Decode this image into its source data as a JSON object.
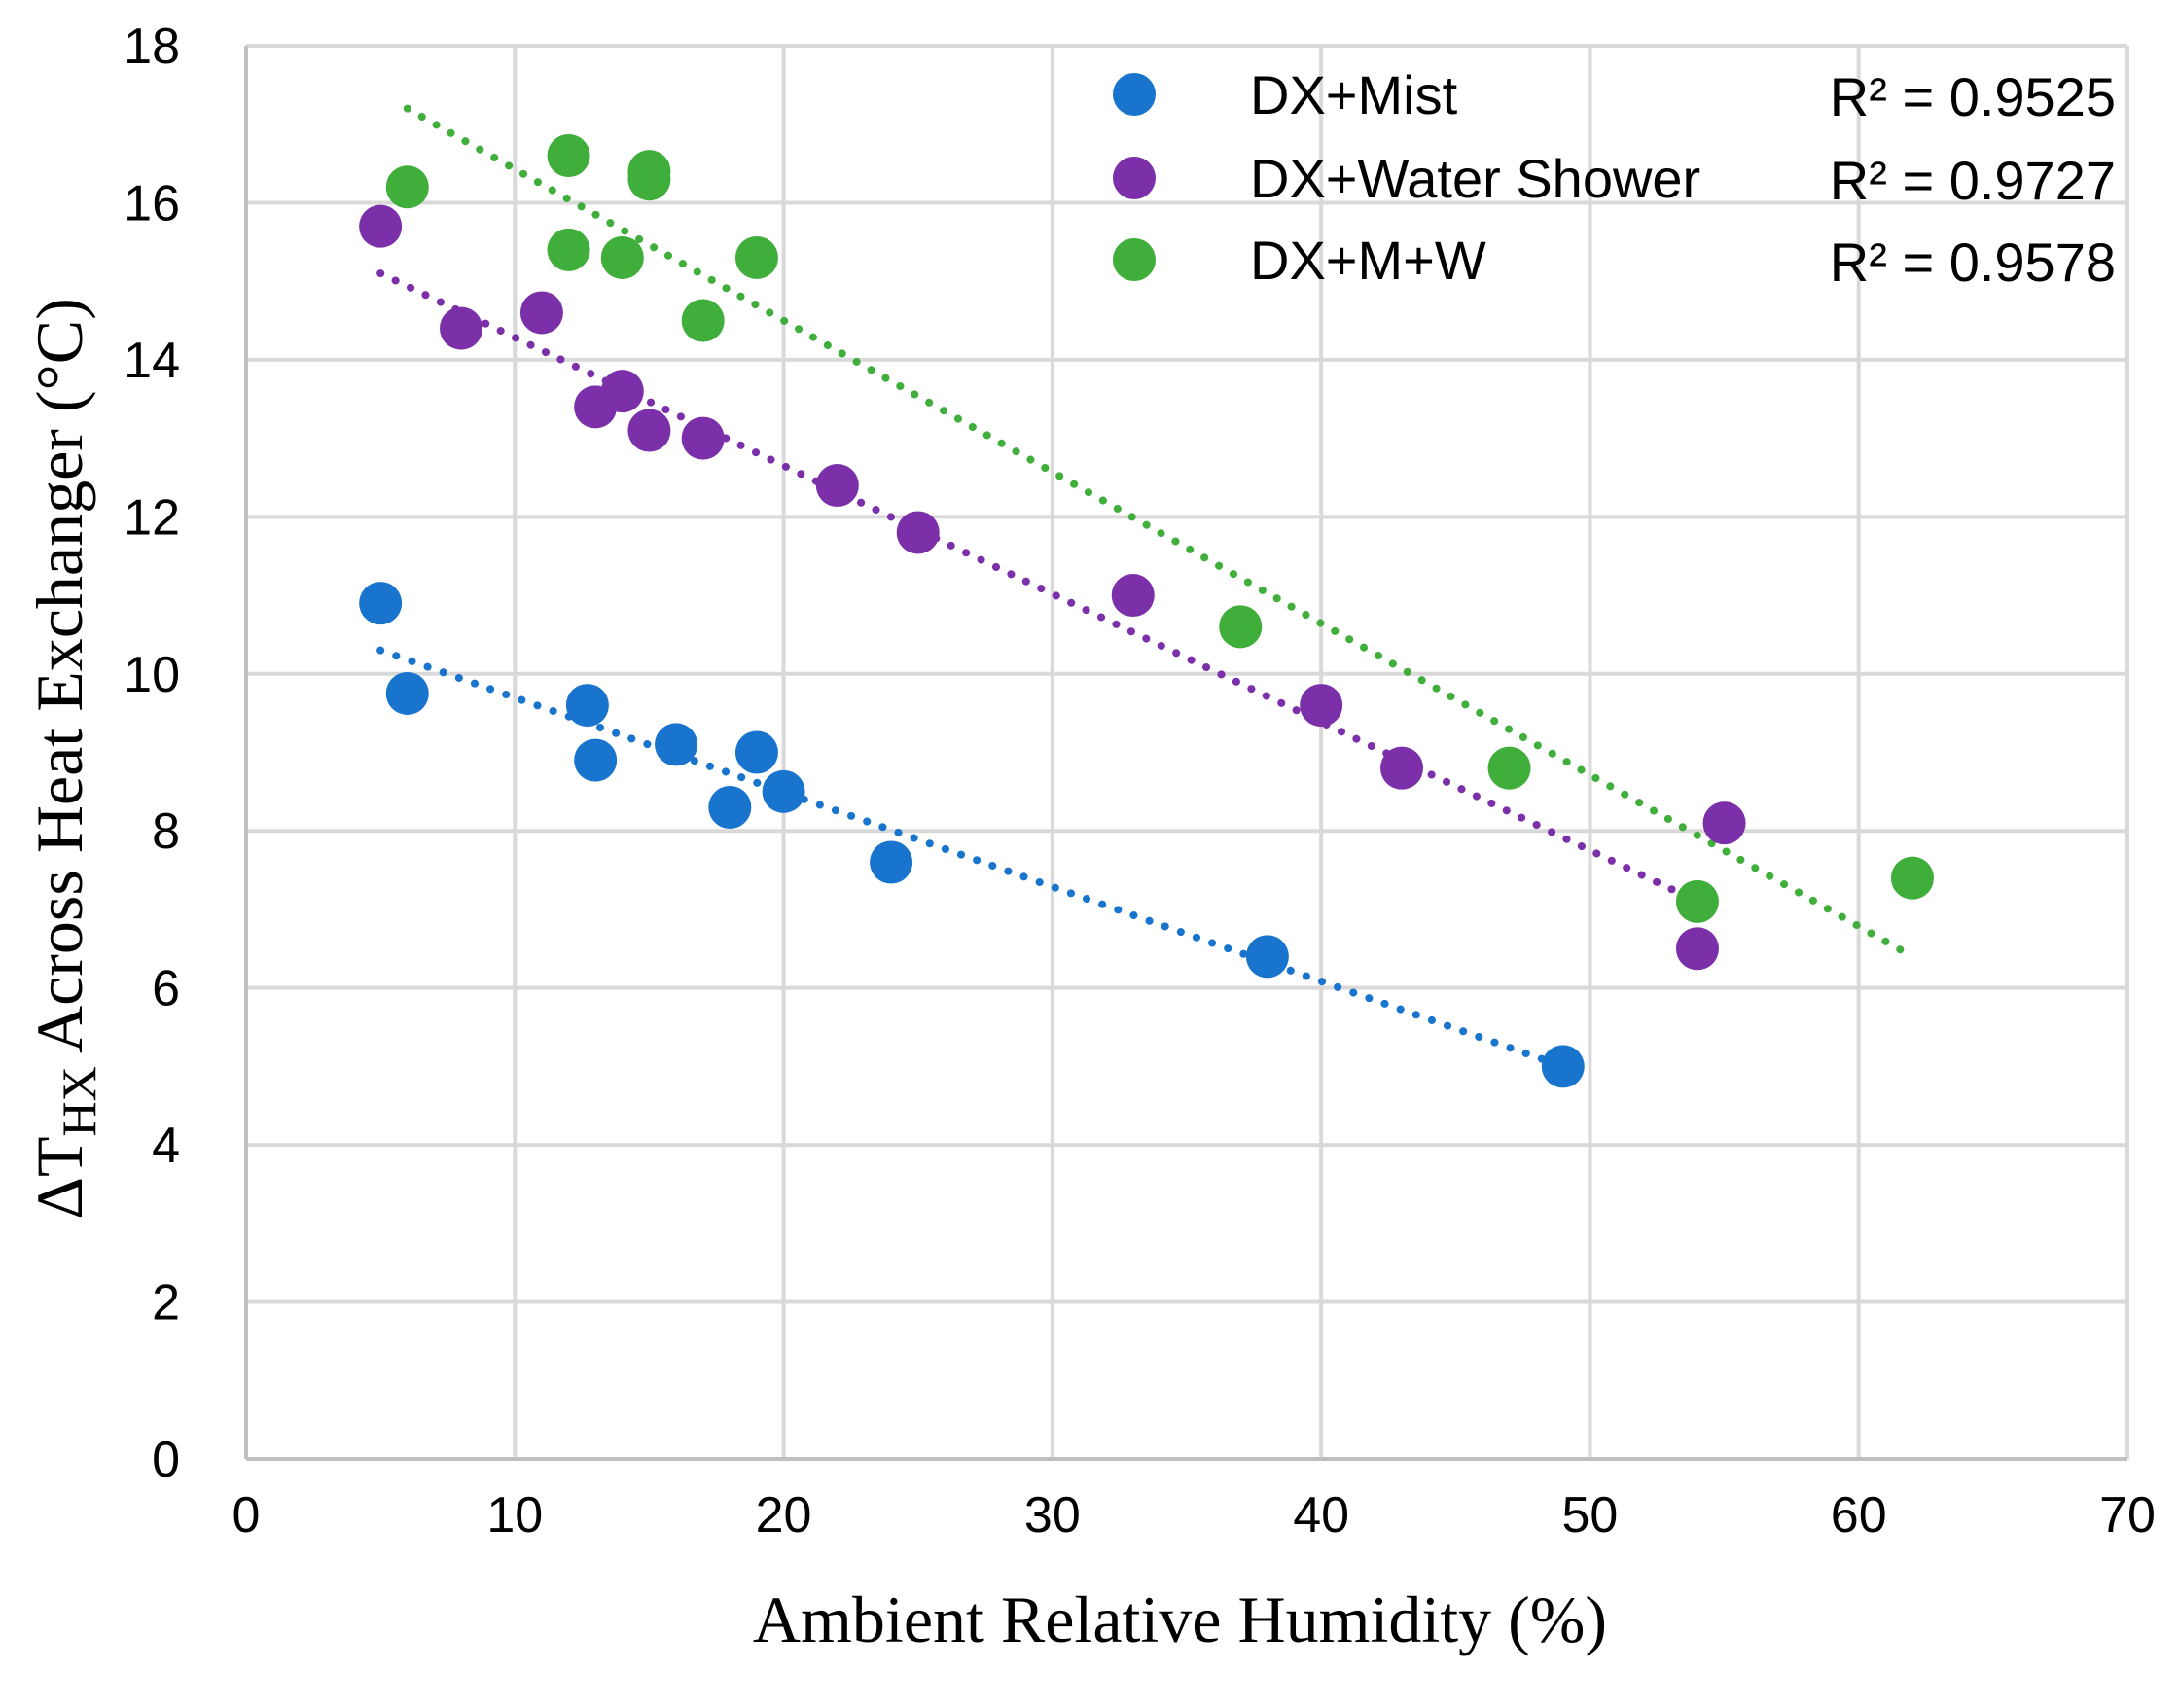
{
  "chart_data": {
    "type": "scatter",
    "xlabel": "Ambient Relative Humidity (%)",
    "ylabel": {
      "prefix": "ΔT",
      "subscript": "HX",
      "suffix": " Across Heat Exchanger (°C)"
    },
    "xlim": [
      0,
      70
    ],
    "ylim": [
      0,
      18
    ],
    "xticks": [
      0,
      10,
      20,
      30,
      40,
      50,
      60,
      70
    ],
    "yticks": [
      0,
      2,
      4,
      6,
      8,
      10,
      12,
      14,
      16,
      18
    ],
    "grid": true,
    "legend_position": "top-right",
    "series": [
      {
        "name": "DX+Mist",
        "color": "#1874CD",
        "r2": "R² = 0.9525",
        "trend": {
          "x_start": 5,
          "x_end": 49,
          "y_start": 10.3,
          "y_end": 5.0
        },
        "points": [
          [
            5,
            10.9
          ],
          [
            6,
            9.75
          ],
          [
            12.7,
            9.6
          ],
          [
            13,
            8.9
          ],
          [
            16,
            9.1
          ],
          [
            18,
            8.3
          ],
          [
            19,
            9.0
          ],
          [
            20,
            8.5
          ],
          [
            24,
            7.6
          ],
          [
            38,
            6.4
          ],
          [
            49,
            5.0
          ]
        ]
      },
      {
        "name": "DX+Water Shower",
        "color": "#7B2FA8",
        "r2": "R² = 0.9727",
        "trend": {
          "x_start": 5,
          "x_end": 54,
          "y_start": 15.1,
          "y_end": 7.1
        },
        "points": [
          [
            5,
            15.7
          ],
          [
            8,
            14.4
          ],
          [
            11,
            14.6
          ],
          [
            13,
            13.4
          ],
          [
            14,
            13.6
          ],
          [
            15,
            13.1
          ],
          [
            17,
            13.0
          ],
          [
            22,
            12.4
          ],
          [
            25,
            11.8
          ],
          [
            33,
            11.0
          ],
          [
            40,
            9.6
          ],
          [
            43,
            8.8
          ],
          [
            54,
            6.5
          ],
          [
            55,
            8.1
          ]
        ]
      },
      {
        "name": "DX+M+W",
        "color": "#3FAE3A",
        "r2": "R² = 0.9578",
        "trend": {
          "x_start": 6,
          "x_end": 62,
          "y_start": 17.2,
          "y_end": 6.4
        },
        "points": [
          [
            6,
            16.2
          ],
          [
            12,
            16.6
          ],
          [
            12,
            15.4
          ],
          [
            14,
            15.3
          ],
          [
            15,
            16.4
          ],
          [
            15,
            16.3
          ],
          [
            17,
            14.5
          ],
          [
            19,
            15.3
          ],
          [
            37,
            10.6
          ],
          [
            47,
            8.8
          ],
          [
            54,
            7.1
          ],
          [
            62,
            7.4
          ]
        ]
      }
    ]
  }
}
